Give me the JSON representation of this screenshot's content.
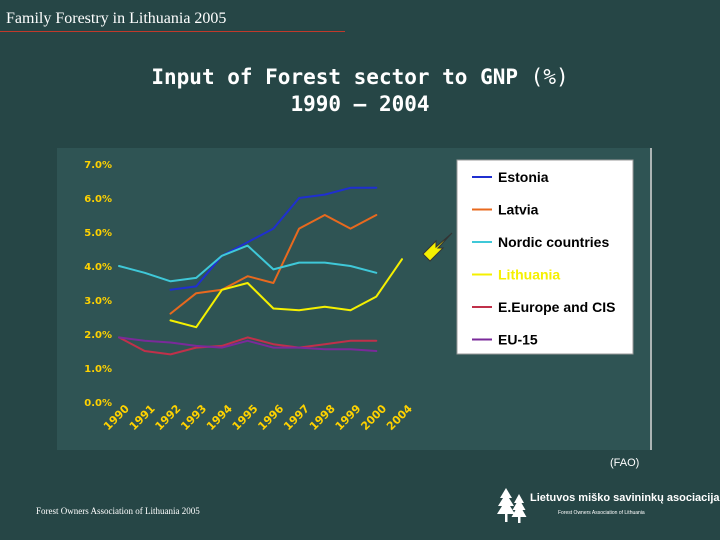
{
  "header": {
    "title": "Family Forestry in Lithuania 2005"
  },
  "slide": {
    "title_bold": "Input of Forest sector to GNP ",
    "title_paren": "(%)",
    "subtitle": "1990 – 2004"
  },
  "source": "(FAO)",
  "footer": {
    "left": "Forest Owners Association of Lithuania 2005",
    "logo_text": "Lietuvos miško savininkų asociacija",
    "logo_sub": "Forest Owners Association of Lithuania"
  },
  "colors": {
    "background": "#264646",
    "panel": "#2f5454",
    "tick": "#ffd200"
  },
  "chart_data": {
    "type": "line",
    "title": "Input of Forest sector to GNP (%) 1990 – 2004",
    "xlabel": "",
    "ylabel": "",
    "x": [
      1990,
      1991,
      1992,
      1993,
      1994,
      1995,
      1996,
      1997,
      1998,
      1999,
      2000,
      2004
    ],
    "ylim": [
      0,
      7
    ],
    "yticks": [
      "0.0%",
      "1.0%",
      "2.0%",
      "3.0%",
      "4.0%",
      "5.0%",
      "6.0%",
      "7.0%"
    ],
    "legend_position": "right",
    "series": [
      {
        "name": "Estonia",
        "color": "#1f2fd0",
        "values": [
          null,
          null,
          3.3,
          3.4,
          4.3,
          4.7,
          5.1,
          6.0,
          6.1,
          6.3,
          6.3,
          null
        ]
      },
      {
        "name": "Latvia",
        "color": "#e8691e",
        "values": [
          null,
          null,
          2.6,
          3.2,
          3.3,
          3.7,
          3.5,
          5.1,
          5.5,
          5.1,
          5.5,
          null
        ]
      },
      {
        "name": "Nordic countries",
        "color": "#3fc8d8",
        "values": [
          4.0,
          3.8,
          3.55,
          3.65,
          4.3,
          4.6,
          3.9,
          4.1,
          4.1,
          4.0,
          3.8,
          null
        ]
      },
      {
        "name": "Lithuania",
        "color": "#f5f000",
        "values": [
          null,
          null,
          2.4,
          2.2,
          3.3,
          3.5,
          2.75,
          2.7,
          2.8,
          2.7,
          3.1,
          4.2
        ]
      },
      {
        "name": "E.Europe and CIS",
        "color": "#c0304a",
        "values": [
          1.9,
          1.5,
          1.4,
          1.6,
          1.65,
          1.9,
          1.7,
          1.6,
          1.7,
          1.8,
          1.8,
          null
        ]
      },
      {
        "name": "EU-15",
        "color": "#7a2a9a",
        "values": [
          1.9,
          1.8,
          1.75,
          1.65,
          1.6,
          1.8,
          1.6,
          1.6,
          1.55,
          1.55,
          1.5,
          null
        ]
      }
    ]
  }
}
